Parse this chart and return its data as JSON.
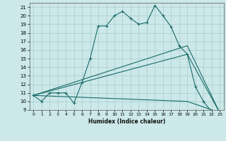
{
  "title": "",
  "xlabel": "Humidex (Indice chaleur)",
  "bg_color": "#cce8e8",
  "line_color": "#1a6b6b",
  "grid_color": "#aacccc",
  "xlim": [
    -0.5,
    23.5
  ],
  "ylim": [
    9,
    21.5
  ],
  "xticks": [
    0,
    1,
    2,
    3,
    4,
    5,
    6,
    7,
    8,
    9,
    10,
    11,
    12,
    13,
    14,
    15,
    16,
    17,
    18,
    19,
    20,
    21,
    22,
    23
  ],
  "yticks": [
    9,
    10,
    11,
    12,
    13,
    14,
    15,
    16,
    17,
    18,
    19,
    20,
    21
  ],
  "line1": {
    "x": [
      0,
      1,
      2,
      3,
      4,
      5,
      6,
      7,
      8,
      9,
      10,
      11,
      12,
      13,
      14,
      15,
      16,
      17,
      18,
      19,
      20,
      21,
      22,
      23
    ],
    "y": [
      10.7,
      10.0,
      11.0,
      11.0,
      11.0,
      9.8,
      12.2,
      15.0,
      18.8,
      18.8,
      20.0,
      20.5,
      19.7,
      19.0,
      19.2,
      21.2,
      20.0,
      18.7,
      16.5,
      15.5,
      11.7,
      10.0,
      8.8,
      8.7
    ]
  },
  "line2": {
    "x": [
      0,
      19,
      23
    ],
    "y": [
      10.7,
      16.5,
      8.7
    ]
  },
  "line3": {
    "x": [
      0,
      19,
      23
    ],
    "y": [
      10.7,
      15.5,
      8.7
    ]
  },
  "line4": {
    "x": [
      0,
      19,
      23
    ],
    "y": [
      10.7,
      10.0,
      8.7
    ]
  }
}
